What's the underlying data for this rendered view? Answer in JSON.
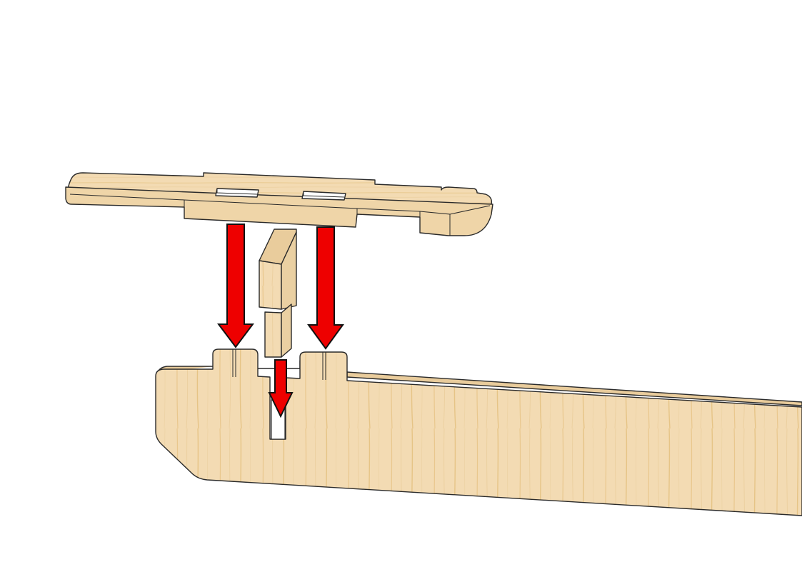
{
  "diagram": {
    "type": "assembly-instruction",
    "steps_shown": 1,
    "parts": [
      {
        "id": "crossbar",
        "material": "plywood"
      },
      {
        "id": "locking-key",
        "material": "plywood"
      },
      {
        "id": "side-panel",
        "material": "plywood"
      }
    ],
    "arrows": [
      {
        "id": "arrow-left",
        "direction": "down"
      },
      {
        "id": "arrow-right",
        "direction": "down"
      },
      {
        "id": "arrow-key",
        "direction": "down"
      }
    ]
  },
  "colors": {
    "wood_face": "#f3dbb3",
    "wood_edge": "#e9cc9c",
    "wood_grain": "#e8c98f",
    "arrow": "#ee0000",
    "outline": "#2a2a2a",
    "background": "#ffffff"
  }
}
